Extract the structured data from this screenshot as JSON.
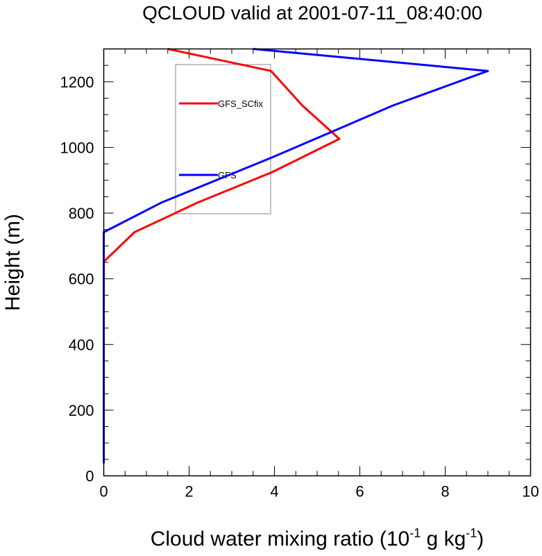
{
  "chart_data": {
    "type": "line",
    "title": "QCLOUD valid at 2001-07-11_08:40:00",
    "xlabel": "Cloud water mixing ratio (10^-1 g kg^-1)",
    "xlabel_parts": {
      "main": "Cloud water mixing ratio (10",
      "sup1": "-1",
      "mid": " g kg",
      "sup2": "-1",
      "end": ")"
    },
    "ylabel": "Height (m)",
    "xlim": [
      0,
      10
    ],
    "ylim": [
      0,
      1300
    ],
    "xticks": [
      0,
      2,
      4,
      6,
      8,
      10
    ],
    "yticks": [
      0,
      200,
      400,
      600,
      800,
      1000,
      1200
    ],
    "grid": false,
    "legend_placement": "upper-center",
    "series": [
      {
        "name": "GFS_SCfix",
        "color": "#ff0000",
        "x": [
          0,
          0,
          0,
          0,
          0,
          0,
          0,
          0,
          0.72,
          2.2,
          3.95,
          5.52,
          4.65,
          3.92,
          1.5
        ],
        "y": [
          38,
          100,
          200,
          300,
          400,
          500,
          600,
          652,
          742,
          832,
          925,
          1026,
          1128,
          1233,
          1300
        ]
      },
      {
        "name": "GFS",
        "color": "#0000ff",
        "x": [
          0,
          0,
          0,
          0,
          0,
          0,
          0,
          0,
          0,
          1.35,
          3.95,
          6.78,
          9.0,
          3.5
        ],
        "y": [
          38,
          100,
          200,
          300,
          400,
          500,
          600,
          652,
          742,
          832,
          970,
          1128,
          1233,
          1300
        ]
      }
    ]
  }
}
